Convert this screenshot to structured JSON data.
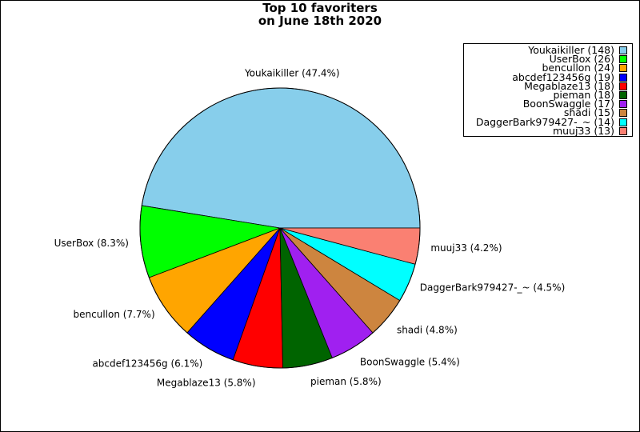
{
  "chart_data": {
    "type": "pie",
    "title": [
      "Top 10 favoriters",
      "on June 18th 2020"
    ],
    "legend_position": "top-right",
    "slices": [
      {
        "name": "Youkaikiller",
        "value": 148,
        "percent_label": "Youkaikiller (47.4%)",
        "legend_label": "Youkaikiller (148)",
        "color": "#87ceeb"
      },
      {
        "name": "UserBox",
        "value": 26,
        "percent_label": "UserBox (8.3%)",
        "legend_label": "UserBox (26)",
        "color": "#00ff00"
      },
      {
        "name": "bencullon",
        "value": 24,
        "percent_label": "bencullon (7.7%)",
        "legend_label": "bencullon (24)",
        "color": "#ffa500"
      },
      {
        "name": "abcdef123456g",
        "value": 19,
        "percent_label": "abcdef123456g (6.1%)",
        "legend_label": "abcdef123456g (19)",
        "color": "#0000ff"
      },
      {
        "name": "Megablaze13",
        "value": 18,
        "percent_label": "Megablaze13 (5.8%)",
        "legend_label": "Megablaze13 (18)",
        "color": "#ff0000"
      },
      {
        "name": "pieman",
        "value": 18,
        "percent_label": "pieman (5.8%)",
        "legend_label": "pieman (18)",
        "color": "#006400"
      },
      {
        "name": "BoonSwaggle",
        "value": 17,
        "percent_label": "BoonSwaggle (5.4%)",
        "legend_label": "BoonSwaggle (17)",
        "color": "#a020f0"
      },
      {
        "name": "shadi",
        "value": 15,
        "percent_label": "shadi (4.8%)",
        "legend_label": "shadi (15)",
        "color": "#cd853f"
      },
      {
        "name": "DaggerBark979427-_~",
        "value": 14,
        "percent_label": "DaggerBark979427-_~ (4.5%)",
        "legend_label": "DaggerBark979427-_~ (14)",
        "color": "#00ffff"
      },
      {
        "name": "muuj33",
        "value": 13,
        "percent_label": "muuj33 (4.2%)",
        "legend_label": "muuj33 (13)",
        "color": "#fa8072"
      }
    ]
  }
}
